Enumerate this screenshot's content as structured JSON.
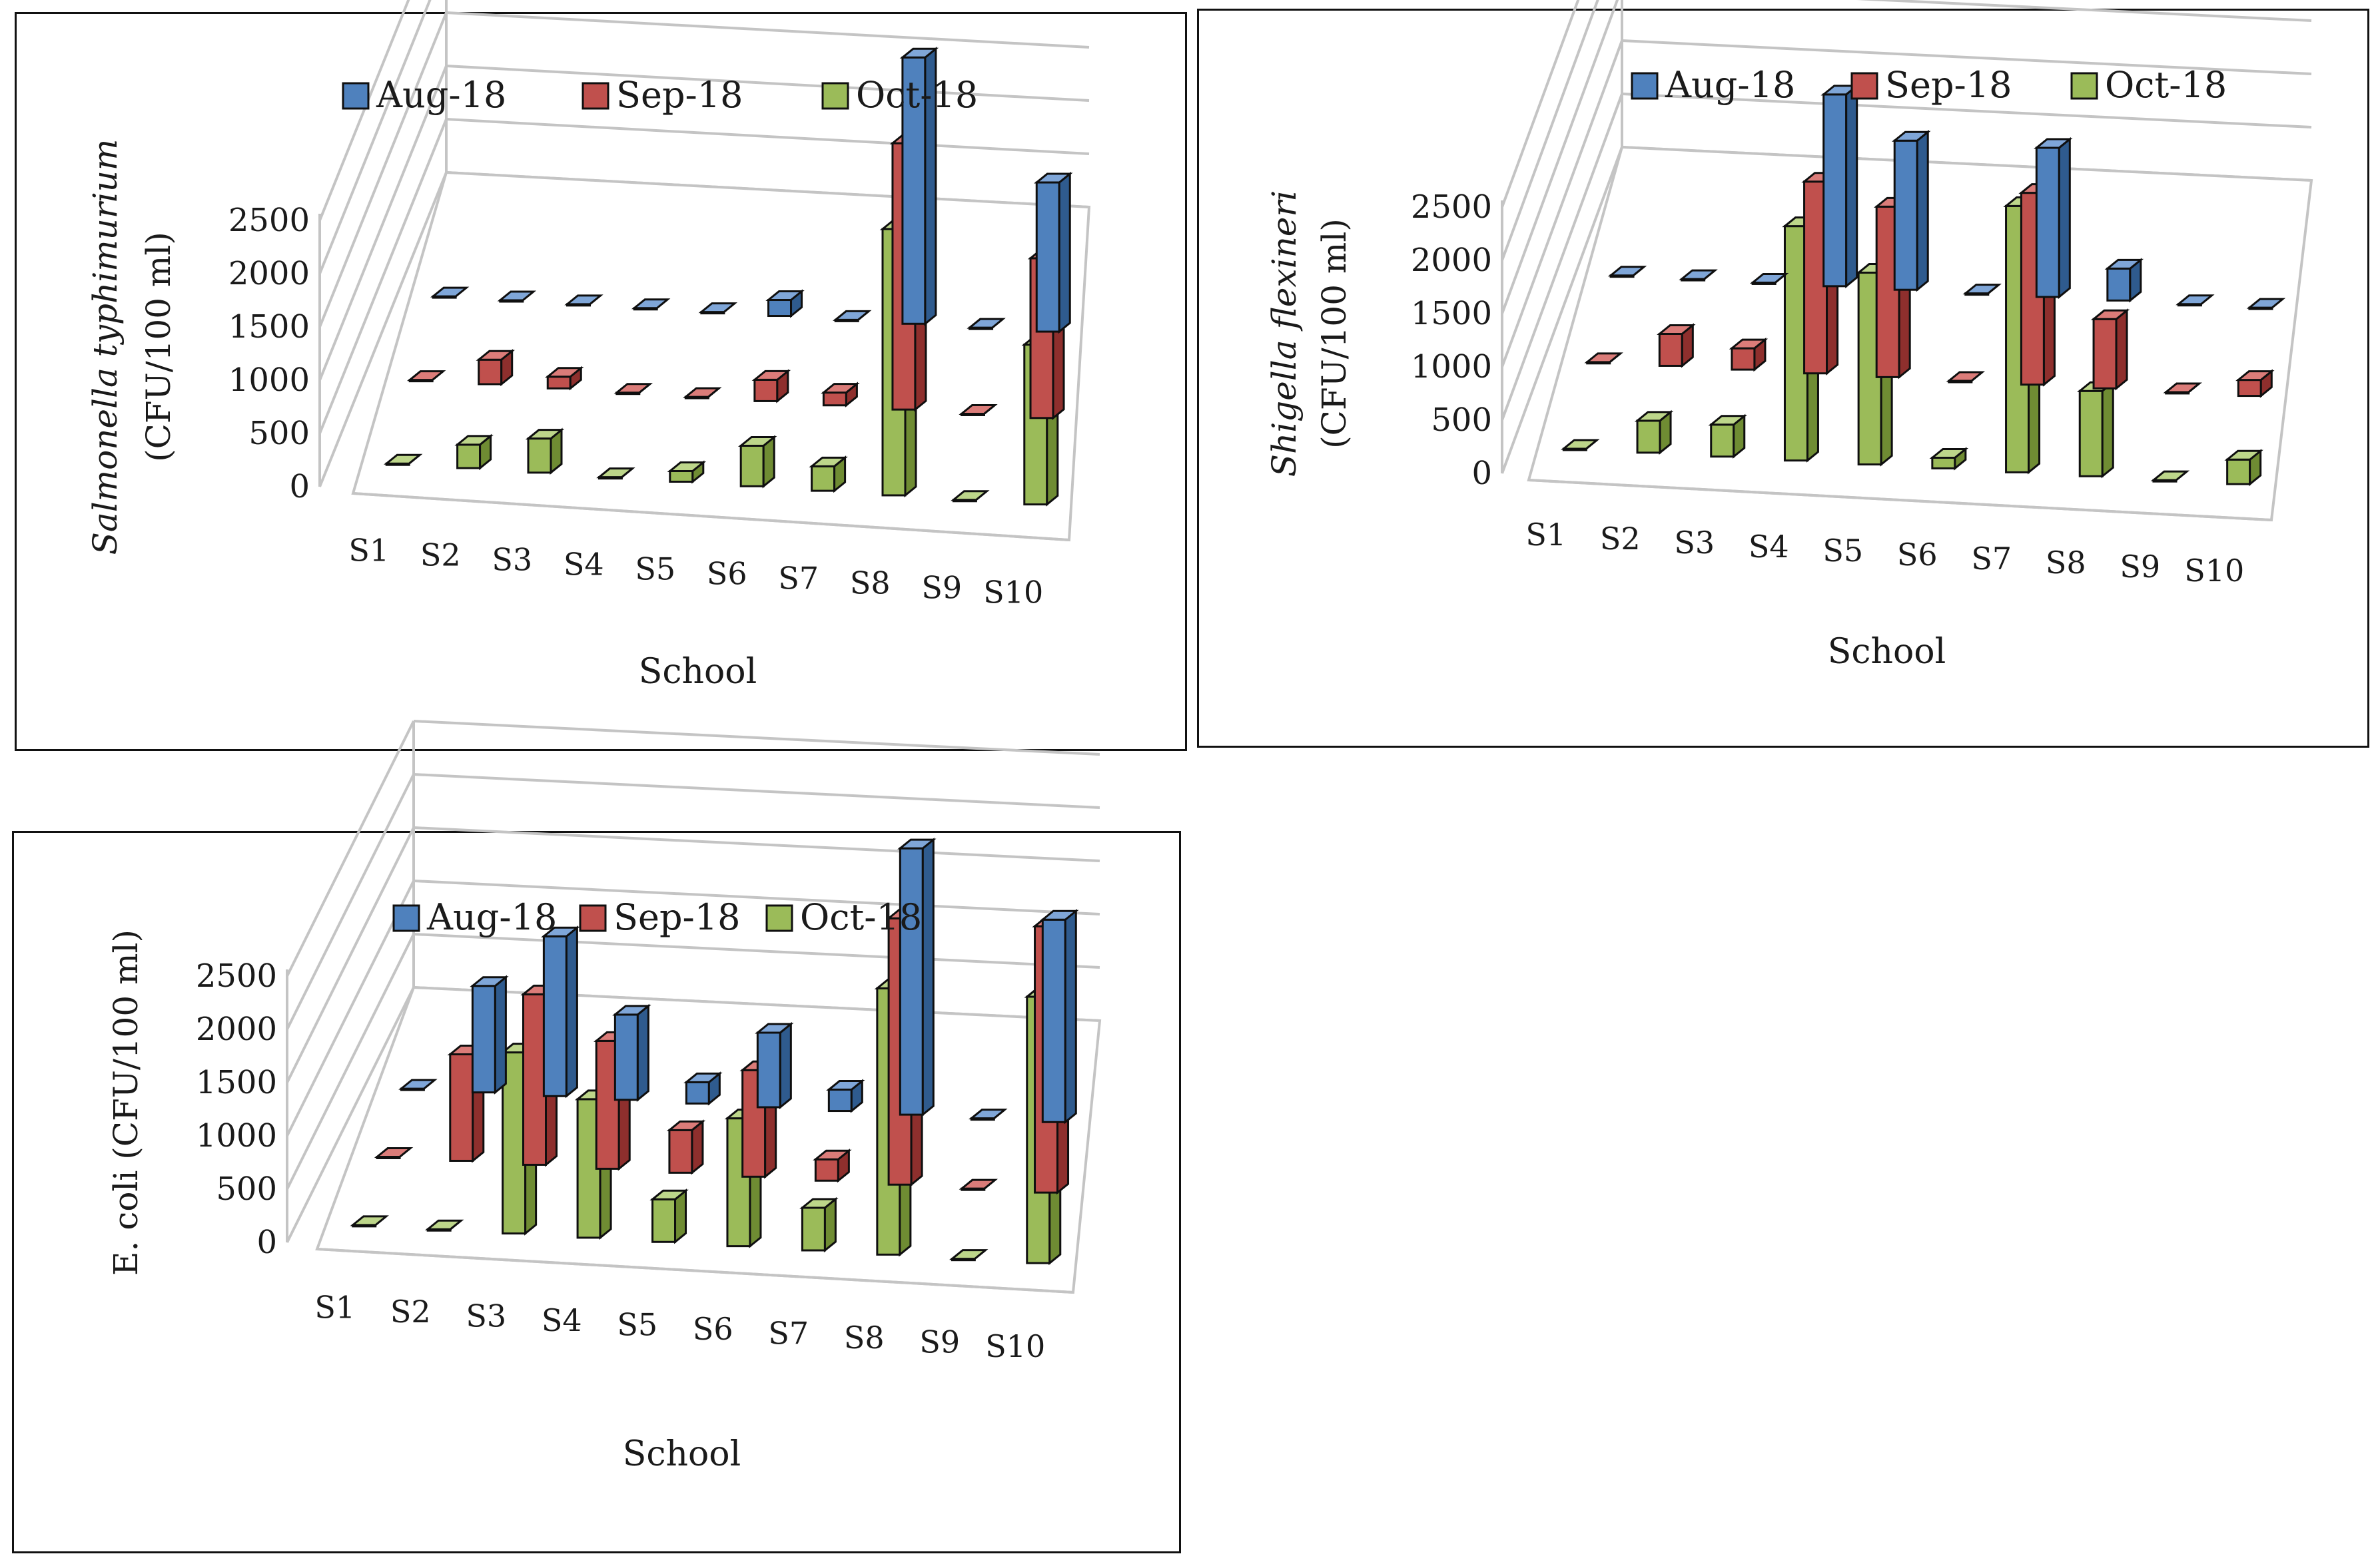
{
  "chart_data": [
    {
      "type": "bar",
      "subtype": "3d-clustered-column",
      "title": "",
      "xlabel": "School",
      "ylabel_italic": "Salmonella typhimurium",
      "ylabel_plain": "(CFU/100 ml)",
      "ylim": [
        0,
        2500
      ],
      "yticks": [
        "0",
        "500",
        "1000",
        "1500",
        "2000",
        "2500"
      ],
      "legend_position": "top",
      "categories": [
        "S1",
        "S2",
        "S3",
        "S4",
        "S5",
        "S6",
        "S7",
        "S8",
        "S9",
        "S10"
      ],
      "series": [
        {
          "name": "Aug-18",
          "values": [
            0,
            0,
            0,
            0,
            0,
            150,
            0,
            2500,
            0,
            1400
          ]
        },
        {
          "name": "Sep-18",
          "values": [
            0,
            230,
            110,
            0,
            0,
            200,
            120,
            2500,
            0,
            1500
          ]
        },
        {
          "name": "Oct-18",
          "values": [
            0,
            220,
            320,
            0,
            100,
            380,
            230,
            2500,
            0,
            1500
          ]
        }
      ]
    },
    {
      "type": "bar",
      "subtype": "3d-clustered-column",
      "title": "",
      "xlabel": "School",
      "ylabel_italic": "Shigella flexineri",
      "ylabel_plain": "(CFU/100 ml)",
      "ylim": [
        0,
        2500
      ],
      "yticks": [
        "0",
        "500",
        "1000",
        "1500",
        "2000",
        "2500"
      ],
      "legend_position": "top",
      "categories": [
        "S1",
        "S2",
        "S3",
        "S4",
        "S5",
        "S6",
        "S7",
        "S8",
        "S9",
        "S10"
      ],
      "series": [
        {
          "name": "Aug-18",
          "values": [
            0,
            0,
            0,
            1800,
            1400,
            0,
            1400,
            300,
            0,
            0
          ]
        },
        {
          "name": "Sep-18",
          "values": [
            0,
            300,
            200,
            1800,
            1600,
            0,
            1800,
            650,
            0,
            150
          ]
        },
        {
          "name": "Oct-18",
          "values": [
            0,
            300,
            300,
            2200,
            1800,
            100,
            2500,
            800,
            0,
            230
          ]
        }
      ]
    },
    {
      "type": "bar",
      "subtype": "3d-clustered-column",
      "title": "",
      "xlabel": "School",
      "ylabel_italic": "",
      "ylabel_plain": "E. coli (CFU/100 ml)",
      "ylim": [
        0,
        2500
      ],
      "yticks": [
        "0",
        "500",
        "1000",
        "1500",
        "2000",
        "2500"
      ],
      "legend_position": "top",
      "categories": [
        "S1",
        "S2",
        "S3",
        "S4",
        "S5",
        "S6",
        "S7",
        "S8",
        "S9",
        "S10"
      ],
      "series": [
        {
          "name": "Aug-18",
          "values": [
            0,
            1000,
            1500,
            800,
            200,
            700,
            200,
            2500,
            0,
            1900
          ]
        },
        {
          "name": "Sep-18",
          "values": [
            0,
            1000,
            1600,
            1200,
            400,
            1000,
            200,
            2500,
            0,
            2500
          ]
        },
        {
          "name": "Oct-18",
          "values": [
            0,
            0,
            1700,
            1300,
            400,
            1200,
            400,
            2500,
            0,
            2500
          ]
        }
      ]
    }
  ],
  "colors": {
    "series_front": [
      "#4f81bd",
      "#c0504d",
      "#9bbb59"
    ],
    "series_side": [
      "#2f5b8e",
      "#8e2f2d",
      "#6f8c33"
    ],
    "series_top": [
      "#7fa6d8",
      "#db7c79",
      "#bdd68a"
    ],
    "grid": "#c4c4c4",
    "border": "#111111"
  }
}
